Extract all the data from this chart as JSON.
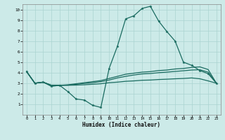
{
  "xlabel": "Humidex (Indice chaleur)",
  "background_color": "#cceae8",
  "grid_color": "#aad4d0",
  "line_color": "#1a6b60",
  "xlim": [
    -0.5,
    23.5
  ],
  "ylim": [
    0,
    10.5
  ],
  "xticks": [
    0,
    1,
    2,
    3,
    4,
    5,
    6,
    7,
    8,
    9,
    10,
    11,
    12,
    13,
    14,
    15,
    16,
    17,
    18,
    19,
    20,
    21,
    22,
    23
  ],
  "yticks": [
    1,
    2,
    3,
    4,
    5,
    6,
    7,
    8,
    9,
    10
  ],
  "line1_x": [
    0,
    1,
    2,
    3,
    4,
    5,
    6,
    7,
    8,
    9,
    10,
    11,
    12,
    13,
    14,
    15,
    16,
    17,
    18,
    19,
    20,
    21,
    22,
    23
  ],
  "line1_y": [
    4.1,
    3.0,
    3.1,
    2.7,
    2.8,
    2.2,
    1.5,
    1.4,
    0.9,
    0.7,
    4.4,
    6.5,
    9.1,
    9.4,
    10.1,
    10.3,
    8.9,
    7.9,
    7.0,
    5.0,
    4.7,
    4.2,
    3.9,
    3.0
  ],
  "line2_x": [
    0,
    1,
    2,
    3,
    4,
    5,
    6,
    7,
    8,
    9,
    10,
    11,
    12,
    13,
    14,
    15,
    16,
    17,
    18,
    19,
    20,
    21,
    22,
    23
  ],
  "line2_y": [
    4.1,
    3.0,
    3.1,
    2.8,
    2.8,
    2.85,
    2.95,
    3.05,
    3.15,
    3.25,
    3.45,
    3.65,
    3.85,
    3.95,
    4.05,
    4.1,
    4.2,
    4.25,
    4.35,
    4.4,
    4.5,
    4.55,
    4.3,
    3.0
  ],
  "line3_x": [
    0,
    1,
    2,
    3,
    4,
    5,
    6,
    7,
    8,
    9,
    10,
    11,
    12,
    13,
    14,
    15,
    16,
    17,
    18,
    19,
    20,
    21,
    22,
    23
  ],
  "line3_y": [
    4.1,
    3.0,
    3.1,
    2.8,
    2.8,
    2.82,
    2.9,
    2.98,
    3.05,
    3.15,
    3.3,
    3.5,
    3.65,
    3.78,
    3.88,
    3.92,
    4.0,
    4.05,
    4.12,
    4.18,
    4.25,
    4.28,
    4.05,
    3.0
  ],
  "line4_x": [
    0,
    1,
    2,
    3,
    4,
    5,
    6,
    7,
    8,
    9,
    10,
    11,
    12,
    13,
    14,
    15,
    16,
    17,
    18,
    19,
    20,
    21,
    22,
    23
  ],
  "line4_y": [
    4.1,
    3.0,
    3.1,
    2.8,
    2.8,
    2.8,
    2.82,
    2.85,
    2.9,
    2.95,
    3.05,
    3.1,
    3.18,
    3.22,
    3.28,
    3.3,
    3.35,
    3.38,
    3.42,
    3.45,
    3.5,
    3.42,
    3.22,
    3.0
  ]
}
